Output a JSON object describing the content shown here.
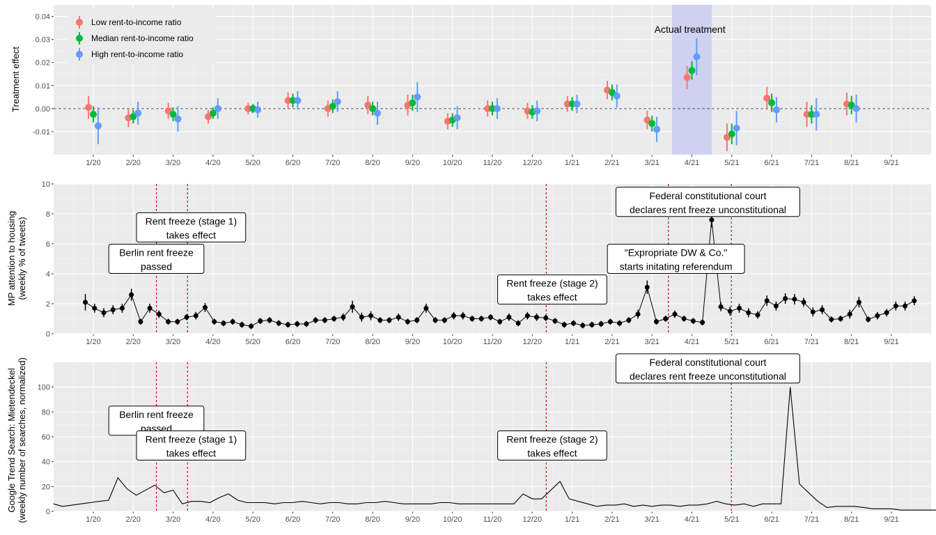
{
  "month_labels": [
    "1/20",
    "2/20",
    "3/20",
    "4/20",
    "5/20",
    "6/20",
    "7/20",
    "8/20",
    "9/20",
    "10/20",
    "11/20",
    "12/20",
    "1/21",
    "2/21",
    "3/21",
    "4/21",
    "5/21",
    "6/21",
    "7/21",
    "8/21",
    "9/21"
  ],
  "colors": {
    "panel": "#ebebeb",
    "low": "#f8766d",
    "median": "#00ba38",
    "high": "#619cff",
    "marker": "#d7000f",
    "treatment": "#cfd1f0",
    "line": "#000000"
  },
  "chart_data": [
    {
      "type": "scatter",
      "ylabel": "Treatment effect",
      "ylim": [
        -0.02,
        0.045
      ],
      "yticks": [
        "0.04",
        "0.03",
        "0.02",
        "0.01",
        "0.00",
        "-0.01"
      ],
      "grid": true,
      "legend_placement": "top-left",
      "zero_line": "dashed",
      "highlight": {
        "label": "Actual treatment",
        "month": "4/21"
      },
      "series": [
        {
          "name": "Low rent-to-income ratio",
          "color_key": "low",
          "values": [
            0.0005,
            -0.004,
            -0.001,
            -0.0035,
            0.0,
            0.0035,
            0.0,
            0.0015,
            0.0015,
            -0.0055,
            0.0,
            -0.001,
            0.002,
            0.008,
            -0.005,
            0.0135,
            -0.0125,
            0.0045,
            -0.0025,
            0.002
          ],
          "err": [
            0.005,
            0.004,
            0.0035,
            0.003,
            0.0025,
            0.0035,
            0.0035,
            0.004,
            0.0045,
            0.0035,
            0.0035,
            0.0035,
            0.0035,
            0.004,
            0.004,
            0.005,
            0.006,
            0.005,
            0.0055,
            0.005
          ]
        },
        {
          "name": "Median rent-to-income ratio",
          "color_key": "median",
          "values": [
            -0.0025,
            -0.0035,
            -0.0025,
            -0.002,
            0.0,
            0.0035,
            0.001,
            0.0,
            0.0025,
            -0.005,
            0.0,
            -0.0015,
            0.002,
            0.007,
            -0.0065,
            0.0165,
            -0.011,
            0.0025,
            -0.0025,
            0.0015
          ],
          "err": [
            0.0035,
            0.003,
            0.003,
            0.0025,
            0.002,
            0.003,
            0.003,
            0.003,
            0.0035,
            0.003,
            0.003,
            0.003,
            0.003,
            0.0035,
            0.0035,
            0.004,
            0.0045,
            0.004,
            0.004,
            0.004
          ]
        },
        {
          "name": "High rent-to-income ratio",
          "color_key": "high",
          "values": [
            -0.0075,
            -0.002,
            -0.0045,
            0.0,
            -0.0005,
            0.0035,
            0.003,
            -0.002,
            0.005,
            -0.004,
            0.0,
            -0.001,
            0.002,
            0.0055,
            -0.009,
            0.0225,
            -0.0085,
            -0.0005,
            -0.0025,
            0.0
          ],
          "err": [
            0.008,
            0.005,
            0.0055,
            0.0045,
            0.0035,
            0.004,
            0.0045,
            0.005,
            0.0065,
            0.005,
            0.0045,
            0.0045,
            0.004,
            0.005,
            0.0055,
            0.008,
            0.0075,
            0.0055,
            0.007,
            0.006
          ]
        }
      ]
    },
    {
      "type": "line",
      "ylabel_line1": "MP attention to housing",
      "ylabel_line2": "(weekly % of tweets)",
      "ylim": [
        0,
        10
      ],
      "yticks": [
        "10",
        "8",
        "6",
        "4",
        "2",
        "0"
      ],
      "grid": true,
      "x_start_month_index": 0.8,
      "x_week_step": 0.2308,
      "values": [
        2.1,
        1.7,
        1.4,
        1.6,
        1.7,
        2.6,
        0.8,
        1.7,
        1.3,
        0.8,
        0.8,
        1.1,
        1.2,
        1.75,
        0.8,
        0.7,
        0.8,
        0.6,
        0.5,
        0.85,
        0.9,
        0.7,
        0.6,
        0.65,
        0.65,
        0.9,
        0.9,
        1.0,
        1.1,
        1.8,
        1.1,
        1.2,
        0.9,
        0.9,
        1.1,
        0.8,
        0.9,
        1.7,
        0.9,
        0.9,
        1.2,
        1.2,
        1.0,
        1.0,
        1.1,
        0.8,
        1.1,
        0.7,
        1.2,
        1.1,
        1.05,
        0.85,
        0.6,
        0.7,
        0.55,
        0.6,
        0.65,
        0.8,
        0.7,
        0.9,
        1.3,
        3.1,
        0.8,
        1.0,
        1.3,
        1.0,
        0.85,
        0.75,
        7.6,
        1.8,
        1.5,
        1.7,
        1.4,
        1.25,
        2.2,
        1.85,
        2.35,
        2.3,
        2.1,
        1.45,
        1.6,
        0.95,
        1.0,
        1.3,
        2.1,
        0.95,
        1.2,
        1.4,
        1.85,
        1.85,
        2.2
      ],
      "err": [
        0.55,
        0.3,
        0.3,
        0.3,
        0.3,
        0.4,
        0.2,
        0.3,
        0.25,
        0.2,
        0.2,
        0.2,
        0.25,
        0.3,
        0.2,
        0.2,
        0.2,
        0.2,
        0.2,
        0.2,
        0.2,
        0.2,
        0.2,
        0.2,
        0.2,
        0.2,
        0.2,
        0.2,
        0.25,
        0.4,
        0.3,
        0.3,
        0.2,
        0.2,
        0.25,
        0.2,
        0.2,
        0.3,
        0.2,
        0.2,
        0.25,
        0.25,
        0.2,
        0.2,
        0.2,
        0.2,
        0.25,
        0.2,
        0.25,
        0.25,
        0.2,
        0.2,
        0.2,
        0.2,
        0.2,
        0.2,
        0.2,
        0.2,
        0.2,
        0.2,
        0.3,
        0.45,
        0.2,
        0.2,
        0.25,
        0.2,
        0.2,
        0.2,
        0.5,
        0.3,
        0.3,
        0.3,
        0.3,
        0.25,
        0.35,
        0.3,
        0.35,
        0.35,
        0.3,
        0.3,
        0.3,
        0.2,
        0.2,
        0.3,
        0.35,
        0.2,
        0.25,
        0.25,
        0.3,
        0.3,
        0.3
      ],
      "annotations": [
        {
          "month": 1.58,
          "line1": "Berlin rent freeze",
          "line2": "passed",
          "value": 5.0
        },
        {
          "month": 2.45,
          "line1": "Rent freeze (stage 1)",
          "line2": "takes effect",
          "value": 7.1
        },
        {
          "month": 11.5,
          "line1": "Rent freeze (stage 2)",
          "line2": "takes effect",
          "value": 2.95
        },
        {
          "month": 14.6,
          "line1": "\"Expropriate DW & Co.\"",
          "line2": "starts initating referendum",
          "value": 5.0
        },
        {
          "month": 15.4,
          "line1": "Federal constitutional court",
          "line2": "declares rent freeze unconstitutional",
          "value": 8.8
        }
      ],
      "vlines": [
        1.58,
        2.36,
        11.35,
        14.41,
        15.99
      ]
    },
    {
      "type": "line",
      "ylabel_line1": "Google Trend Search: Mietendeckel",
      "ylabel_line2": "(weekly number of searches, normalized)",
      "ylim": [
        0,
        120
      ],
      "yticks": [
        "100",
        "80",
        "60",
        "40",
        "20",
        "0"
      ],
      "grid": true,
      "x_start_month_index": 0.0,
      "x_week_step": 0.2308,
      "values": [
        6,
        4,
        5,
        6,
        7,
        8,
        9,
        27,
        18,
        13,
        17,
        21,
        15,
        17,
        6,
        8,
        8,
        7,
        11,
        14,
        9,
        7,
        7,
        7,
        6,
        7,
        7,
        8,
        7,
        6,
        7,
        7,
        6,
        6,
        7,
        7,
        8,
        7,
        6,
        6,
        6,
        6,
        7,
        7,
        6,
        6,
        6,
        6,
        6,
        6,
        6,
        14,
        10,
        10,
        17,
        24,
        10,
        8,
        6,
        4,
        5,
        5,
        6,
        4,
        5,
        4,
        5,
        5,
        4,
        5,
        5,
        6,
        8,
        6,
        5,
        6,
        4,
        6,
        6,
        6,
        100,
        22,
        15,
        8,
        3,
        4,
        4,
        4,
        3,
        2,
        2,
        2,
        1,
        1,
        1,
        1,
        1,
        1,
        1,
        1,
        1,
        1,
        1,
        1,
        2,
        2,
        4,
        4,
        3,
        2,
        1
      ],
      "annotations": [
        {
          "month": 1.58,
          "line1": "Berlin rent freeze",
          "line2": "passed",
          "value": 73
        },
        {
          "month": 2.45,
          "line1": "Rent freeze (stage 1)",
          "line2": "takes effect",
          "value": 53
        },
        {
          "month": 11.5,
          "line1": "Rent freeze (stage 2)",
          "line2": "takes effect",
          "value": 53
        },
        {
          "month": 15.4,
          "line1": "Federal constitutional court",
          "line2": "declares rent freeze unconstitutional",
          "value": 115
        }
      ],
      "vlines": [
        1.58,
        2.36,
        11.35,
        15.99
      ]
    }
  ]
}
